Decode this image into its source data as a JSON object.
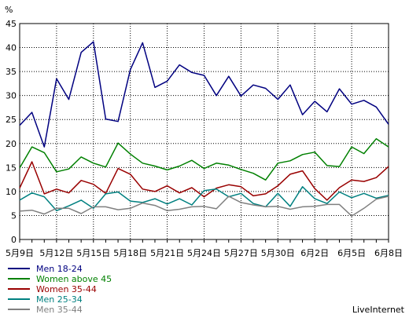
{
  "chart_data": {
    "type": "line",
    "ylabel": "%",
    "ylim": [
      0,
      45
    ],
    "yticks": [
      "0",
      "5",
      "10",
      "15",
      "20",
      "25",
      "30",
      "35",
      "40",
      "45"
    ],
    "grid": "dotted",
    "legend_position": "bottom-left",
    "xticklabels": [
      "5月9日",
      "5月12日",
      "5月15日",
      "5月18日",
      "5月21日",
      "5月24日",
      "5月27日",
      "5月30日",
      "6月2日",
      "6月5日",
      "6月8日"
    ],
    "x": [
      0,
      1,
      2,
      3,
      4,
      5,
      6,
      7,
      8,
      9,
      10,
      11,
      12,
      13,
      14,
      15,
      16,
      17,
      18,
      19,
      20,
      21,
      22,
      23,
      24,
      25,
      26,
      27,
      28,
      29,
      30
    ],
    "series": [
      {
        "name": "Men 18-24",
        "color": "#000080",
        "values": [
          23.8,
          26.5,
          19.3,
          33.5,
          29.2,
          39.0,
          41.2,
          25.1,
          24.6,
          35.4,
          41.0,
          31.7,
          33.0,
          36.4,
          34.8,
          34.2,
          30.0,
          34.0,
          29.9,
          32.2,
          31.5,
          29.2,
          32.2,
          26.0,
          28.8,
          26.6,
          31.4,
          28.2,
          29.0,
          27.6,
          24.0
        ]
      },
      {
        "name": "Women above 45",
        "color": "#008000",
        "values": [
          14.9,
          19.3,
          18.1,
          14.1,
          14.7,
          17.2,
          15.9,
          15.1,
          20.1,
          17.8,
          15.9,
          15.3,
          14.5,
          15.3,
          16.5,
          14.8,
          15.9,
          15.5,
          14.6,
          13.8,
          12.4,
          15.9,
          16.4,
          17.7,
          18.2,
          15.4,
          15.2,
          19.3,
          17.9,
          21.0,
          19.3
        ]
      },
      {
        "name": "Women 35-44",
        "color": "#990000",
        "values": [
          10.7,
          16.2,
          9.5,
          10.5,
          9.7,
          12.3,
          11.5,
          9.6,
          14.8,
          13.6,
          10.5,
          10.0,
          11.2,
          9.7,
          10.8,
          8.9,
          10.7,
          11.4,
          11.0,
          9.1,
          9.5,
          11.2,
          13.6,
          14.3,
          10.6,
          8.2,
          10.8,
          12.4,
          12.1,
          12.9,
          15.2
        ]
      },
      {
        "name": "Men 25-34",
        "color": "#008080",
        "values": [
          8.2,
          9.7,
          8.9,
          6.0,
          7.0,
          8.2,
          6.5,
          9.5,
          9.9,
          8.0,
          7.7,
          8.5,
          7.4,
          8.5,
          7.2,
          10.2,
          10.5,
          8.9,
          9.6,
          7.5,
          6.8,
          9.6,
          6.9,
          11.0,
          8.5,
          7.5,
          9.9,
          8.7,
          9.6,
          8.6,
          9.2
        ]
      },
      {
        "name": "Men 35-44",
        "color": "#808080",
        "values": [
          5.9,
          6.1,
          5.3,
          6.5,
          6.5,
          5.4,
          6.8,
          6.8,
          6.2,
          6.5,
          7.6,
          7.1,
          6.0,
          6.3,
          6.8,
          6.9,
          6.4,
          9.0,
          7.7,
          7.2,
          6.8,
          6.9,
          6.3,
          6.8,
          6.9,
          7.3,
          7.3,
          4.9,
          6.5,
          8.4,
          9.0
        ]
      }
    ]
  },
  "brand": "LiveInternet"
}
